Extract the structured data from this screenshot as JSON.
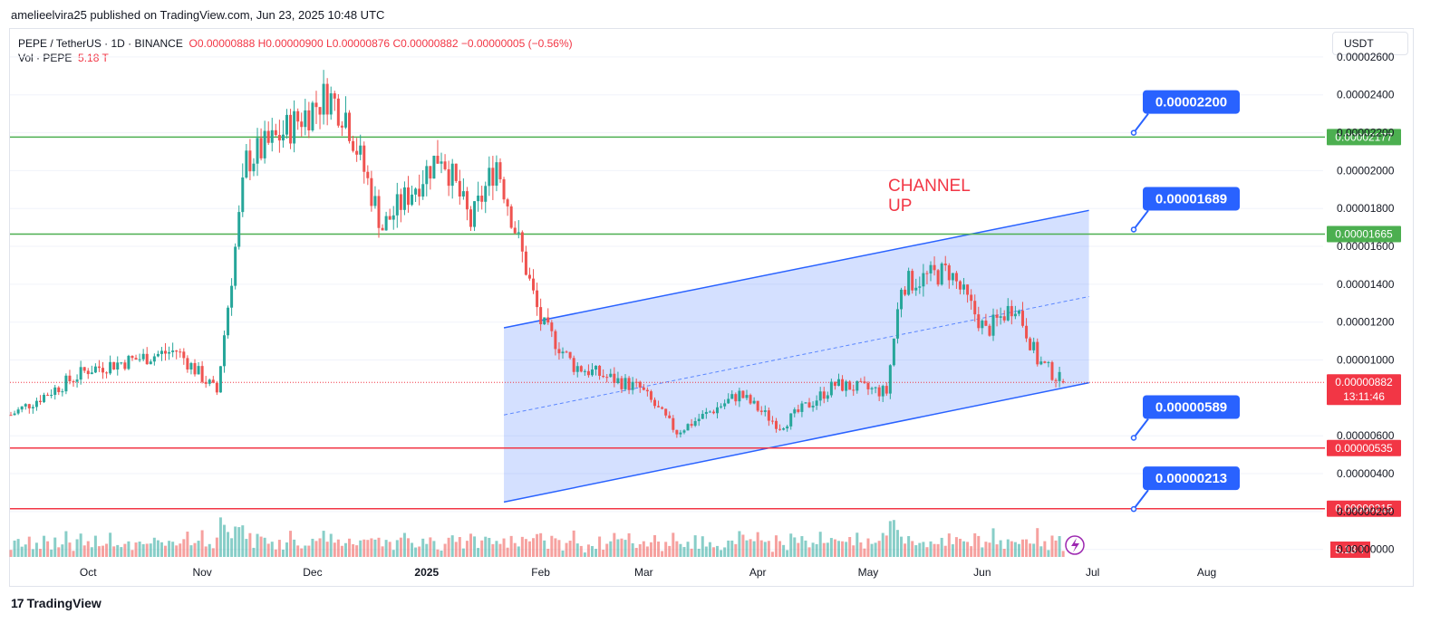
{
  "header": {
    "credit": "amelieelvira25 published on TradingView.com, Jun 23, 2025 10:48 UTC"
  },
  "legend": {
    "symbol": "PEPE / TetherUS · 1D · BINANCE",
    "open": "O0.00000888",
    "high": "H0.00000900",
    "low": "L0.00000876",
    "close": "C0.00000882",
    "change": "−0.00000005 (−0.56%)",
    "volume_label": "Vol · PEPE",
    "volume_value": "5.18 T"
  },
  "currency_button": "USDT",
  "footer": {
    "brand": "TradingView",
    "logo": "17"
  },
  "colors": {
    "up": "#26a69a",
    "down": "#ef5350",
    "channel": "#2962ff",
    "support": "#f23645",
    "resistance": "#4caf50"
  },
  "chart_data": {
    "type": "candlestick",
    "title": "",
    "y_ticks": [
      "0.00002600",
      "0.00002400",
      "0.00002200",
      "0.00002000",
      "0.00001800",
      "0.00001600",
      "0.00001400",
      "0.00001200",
      "0.00001000",
      "0.00000600",
      "0.00000400",
      "0.00000200",
      "0.00000000"
    ],
    "x_ticks": [
      "Oct",
      "Nov",
      "Dec",
      "2025",
      "Feb",
      "Mar",
      "Apr",
      "May",
      "Jun",
      "Jul",
      "Aug"
    ],
    "current_price": {
      "value": "0.00000882",
      "countdown": "13:11:46"
    },
    "volume_badge": "5.18 T",
    "horizontal_levels": [
      {
        "value": "0.00002177",
        "color": "#4caf50"
      },
      {
        "value": "0.00001665",
        "color": "#4caf50"
      },
      {
        "value": "0.00000535",
        "color": "#f23645"
      },
      {
        "value": "0.00000215",
        "color": "#f23645"
      }
    ],
    "callouts": [
      "0.00002200",
      "0.00001689",
      "0.00000589",
      "0.00000213"
    ],
    "annotation": {
      "line1": "CHANNEL",
      "line2": "UP"
    },
    "channel": {
      "start_date": "2025-01-22",
      "end_date": "2025-06-30",
      "lower_start": 2.5e-06,
      "lower_end": 8.8e-06,
      "upper_start": 1.17e-05,
      "upper_end": 1.79e-05
    },
    "key_points": [
      {
        "date": "2024-09-10",
        "close": 7.1e-06
      },
      {
        "date": "2024-10-01",
        "close": 9.5e-06
      },
      {
        "date": "2024-10-25",
        "close": 1.05e-05
      },
      {
        "date": "2024-11-05",
        "close": 8.3e-06
      },
      {
        "date": "2024-11-13",
        "close": 2.05e-05
      },
      {
        "date": "2024-11-20",
        "close": 2.15e-05
      },
      {
        "date": "2024-12-05",
        "close": 2.4e-05
      },
      {
        "date": "2024-12-10",
        "close": 2.3e-05
      },
      {
        "date": "2024-12-20",
        "close": 1.7e-05
      },
      {
        "date": "2025-01-05",
        "close": 2.1e-05
      },
      {
        "date": "2025-01-13",
        "close": 1.72e-05
      },
      {
        "date": "2025-01-20",
        "close": 2.05e-05
      },
      {
        "date": "2025-02-01",
        "close": 1.2e-05
      },
      {
        "date": "2025-02-10",
        "close": 9.7e-06
      },
      {
        "date": "2025-02-28",
        "close": 8.5e-06
      },
      {
        "date": "2025-03-10",
        "close": 6.2e-06
      },
      {
        "date": "2025-03-27",
        "close": 8.2e-06
      },
      {
        "date": "2025-04-07",
        "close": 6.5e-06
      },
      {
        "date": "2025-04-22",
        "close": 8.7e-06
      },
      {
        "date": "2025-05-06",
        "close": 8.3e-06
      },
      {
        "date": "2025-05-10",
        "close": 1.4e-05
      },
      {
        "date": "2025-05-23",
        "close": 1.47e-05
      },
      {
        "date": "2025-06-02",
        "close": 1.15e-05
      },
      {
        "date": "2025-06-10",
        "close": 1.3e-05
      },
      {
        "date": "2025-06-16",
        "close": 1e-05
      },
      {
        "date": "2025-06-23",
        "close": 8.8e-06
      }
    ]
  }
}
